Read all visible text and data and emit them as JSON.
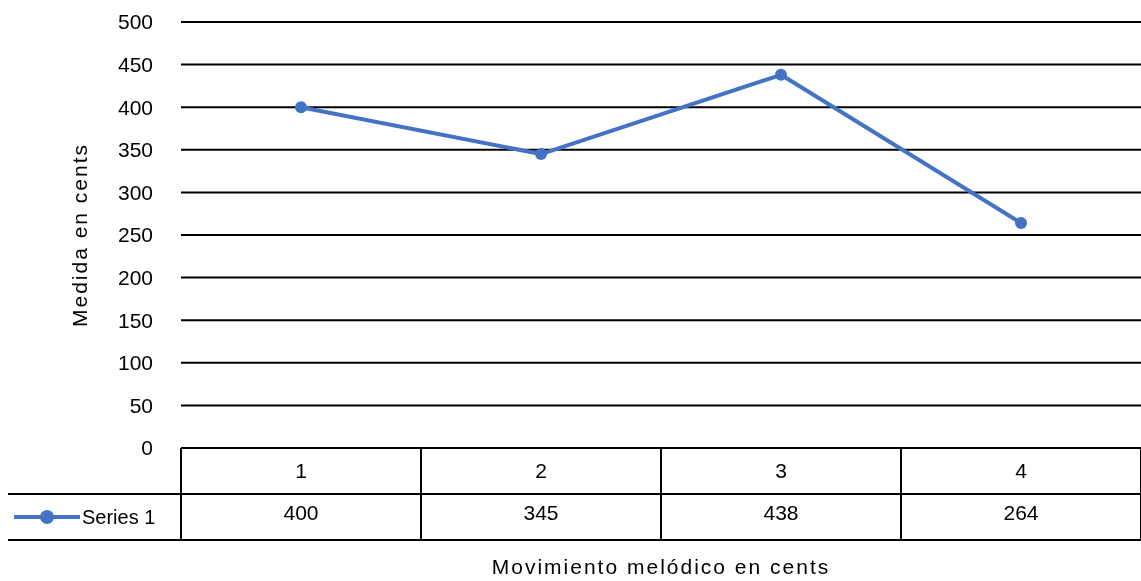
{
  "chart_data": {
    "type": "line",
    "xlabel": "Movimiento melódico en cents",
    "ylabel": "Medida en cents",
    "categories": [
      "1",
      "2",
      "3",
      "4"
    ],
    "series": [
      {
        "name": "Series 1",
        "color": "#4472c4",
        "values": [
          400,
          345,
          438,
          264
        ]
      }
    ],
    "ylim": [
      0,
      500
    ],
    "yticks": [
      0,
      50,
      100,
      150,
      200,
      250,
      300,
      350,
      400,
      450,
      500
    ],
    "grid": "y",
    "legend": "bottom",
    "marker": "circle",
    "line_style": "solid",
    "data_labels": true
  }
}
